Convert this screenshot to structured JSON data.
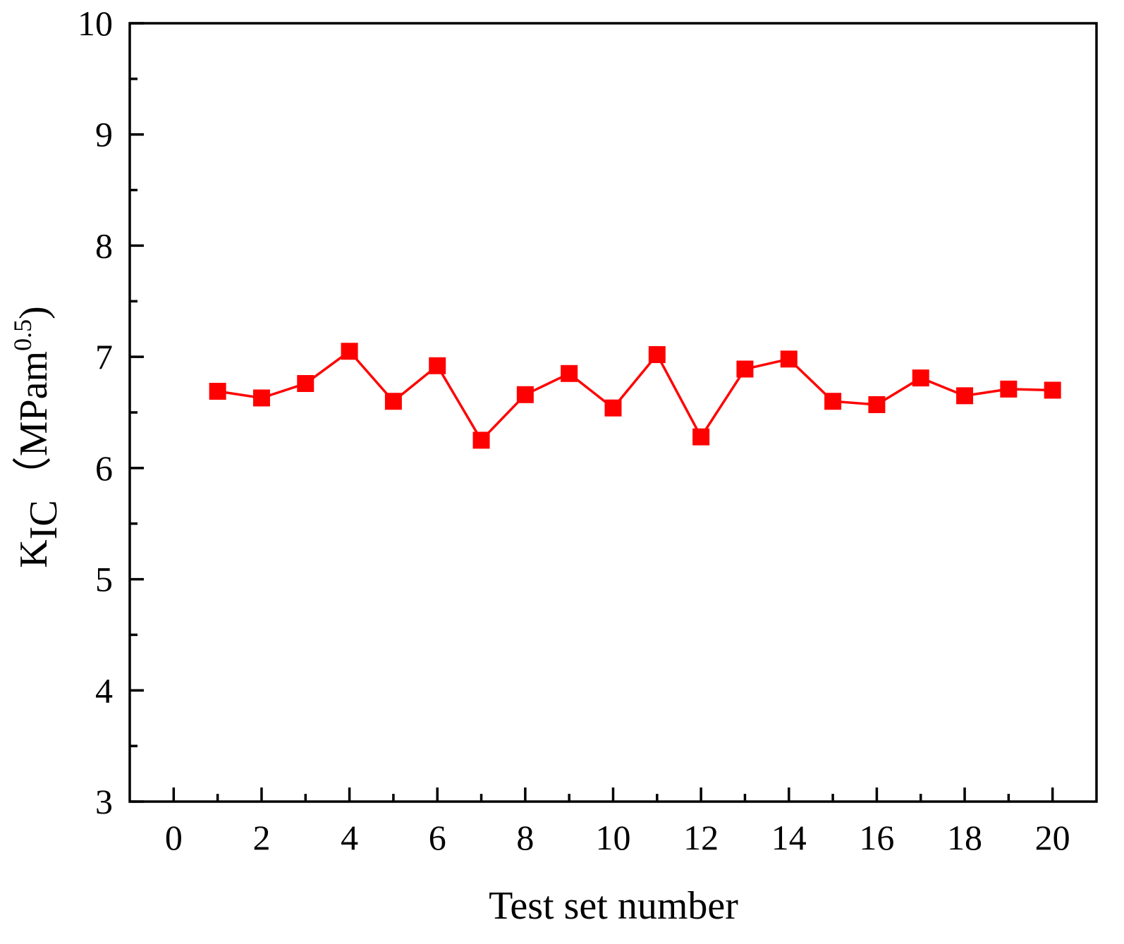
{
  "chart_data": {
    "type": "line",
    "title": "",
    "xlabel": "Test set number",
    "ylabel": {
      "main": "K",
      "subscript": "IC",
      "unit_open": "（MPam",
      "unit_superscript": "0.5",
      "unit_close": ")"
    },
    "xlim": [
      -1,
      21
    ],
    "ylim": [
      3,
      10
    ],
    "x_ticks": [
      0,
      2,
      4,
      6,
      8,
      10,
      12,
      14,
      16,
      18,
      20
    ],
    "x_minor_ticks": [
      1,
      3,
      5,
      7,
      9,
      11,
      13,
      15,
      17,
      19
    ],
    "y_ticks": [
      3,
      4,
      5,
      6,
      7,
      8,
      9,
      10
    ],
    "y_minor_ticks": [
      3.5,
      4.5,
      5.5,
      6.5,
      7.5,
      8.5,
      9.5
    ],
    "grid": false,
    "legend": "none",
    "series": [
      {
        "marker": "square",
        "color": "#ff0000",
        "x": [
          1,
          2,
          3,
          4,
          5,
          6,
          7,
          8,
          9,
          10,
          11,
          12,
          13,
          14,
          15,
          16,
          17,
          18,
          19,
          20
        ],
        "y": [
          6.69,
          6.63,
          6.76,
          7.05,
          6.6,
          6.92,
          6.25,
          6.66,
          6.85,
          6.54,
          7.02,
          6.28,
          6.89,
          6.98,
          6.6,
          6.57,
          6.81,
          6.65,
          6.71,
          6.7
        ]
      }
    ]
  }
}
